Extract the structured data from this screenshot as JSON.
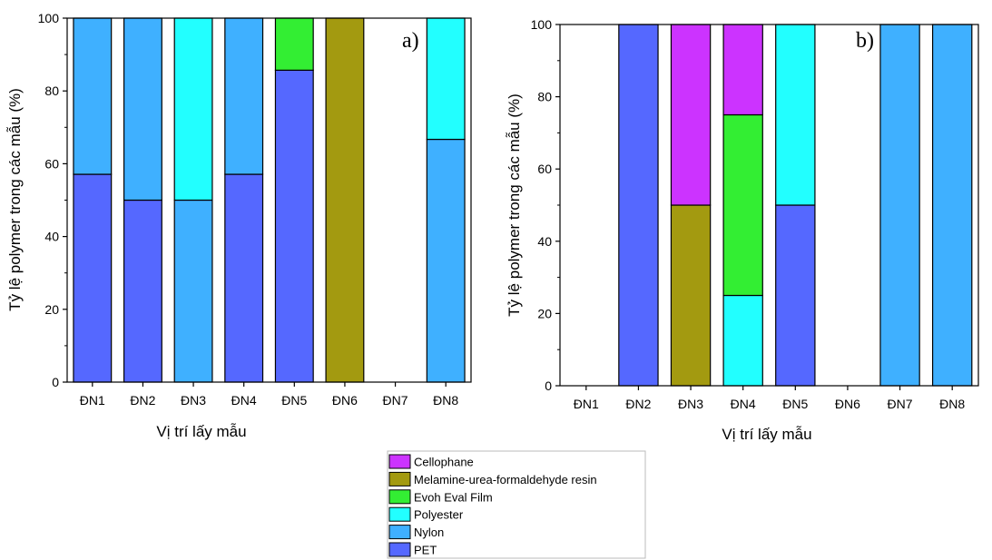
{
  "chart_data": [
    {
      "type": "bar",
      "stacked": true,
      "panel_label": "a)",
      "xlabel": "Vị trí lấy mẫu",
      "ylabel": "Tỷ lệ polymer trong các mẫu (%)",
      "ylim": [
        0,
        100
      ],
      "yticks": [
        "0",
        "20",
        "40",
        "60",
        "80",
        "100"
      ],
      "categories": [
        "ĐN1",
        "ĐN2",
        "ĐN3",
        "ĐN4",
        "ĐN5",
        "ĐN6",
        "ĐN7",
        "ĐN8"
      ],
      "series": [
        {
          "name": "PET",
          "values": [
            57.1,
            50,
            0,
            57.1,
            85.7,
            0,
            0,
            0
          ]
        },
        {
          "name": "Nylon",
          "values": [
            42.9,
            50,
            50,
            42.9,
            0,
            0,
            0,
            66.7
          ]
        },
        {
          "name": "Polyester",
          "values": [
            0,
            0,
            50,
            0,
            0,
            0,
            0,
            33.3
          ]
        },
        {
          "name": "Evoh Eval Film",
          "values": [
            0,
            0,
            0,
            0,
            14.3,
            0,
            0,
            0
          ]
        },
        {
          "name": "Melamine-urea-formaldehyde resin",
          "values": [
            0,
            0,
            0,
            0,
            0,
            100,
            0,
            0
          ]
        },
        {
          "name": "Cellophane",
          "values": [
            0,
            0,
            0,
            0,
            0,
            0,
            0,
            0
          ]
        }
      ]
    },
    {
      "type": "bar",
      "stacked": true,
      "panel_label": "b)",
      "xlabel": "Vị trí lấy mẫu",
      "ylabel": "Tỷ lệ polymer trong các mẫu (%)",
      "ylim": [
        0,
        100
      ],
      "yticks": [
        "0",
        "20",
        "40",
        "60",
        "80",
        "100"
      ],
      "categories": [
        "ĐN1",
        "ĐN2",
        "ĐN3",
        "ĐN4",
        "ĐN5",
        "ĐN6",
        "ĐN7",
        "ĐN8"
      ],
      "series": [
        {
          "name": "PET",
          "values": [
            0,
            100,
            0,
            0,
            50,
            0,
            0,
            0
          ]
        },
        {
          "name": "Nylon",
          "values": [
            0,
            0,
            0,
            0,
            0,
            0,
            100,
            100
          ]
        },
        {
          "name": "Polyester",
          "values": [
            0,
            0,
            0,
            25,
            50,
            0,
            0,
            0
          ]
        },
        {
          "name": "Evoh Eval Film",
          "values": [
            0,
            0,
            0,
            50,
            0,
            0,
            0,
            0
          ]
        },
        {
          "name": "Melamine-urea-formaldehyde resin",
          "values": [
            0,
            0,
            50,
            0,
            0,
            0,
            0,
            0
          ]
        },
        {
          "name": "Cellophane",
          "values": [
            0,
            0,
            50,
            25,
            0,
            0,
            0,
            0
          ]
        }
      ]
    }
  ],
  "legend": {
    "placement": "bottom-center",
    "items": [
      {
        "name": "Cellophane",
        "color": "#cc33ff"
      },
      {
        "name": "Melamine-urea-formaldehyde resin",
        "color": "#a39a10"
      },
      {
        "name": "Evoh Eval Film",
        "color": "#33ee33"
      },
      {
        "name": "Polyester",
        "color": "#22ffff"
      },
      {
        "name": "Nylon",
        "color": "#3fb0ff"
      },
      {
        "name": "PET",
        "color": "#5568ff"
      }
    ]
  }
}
